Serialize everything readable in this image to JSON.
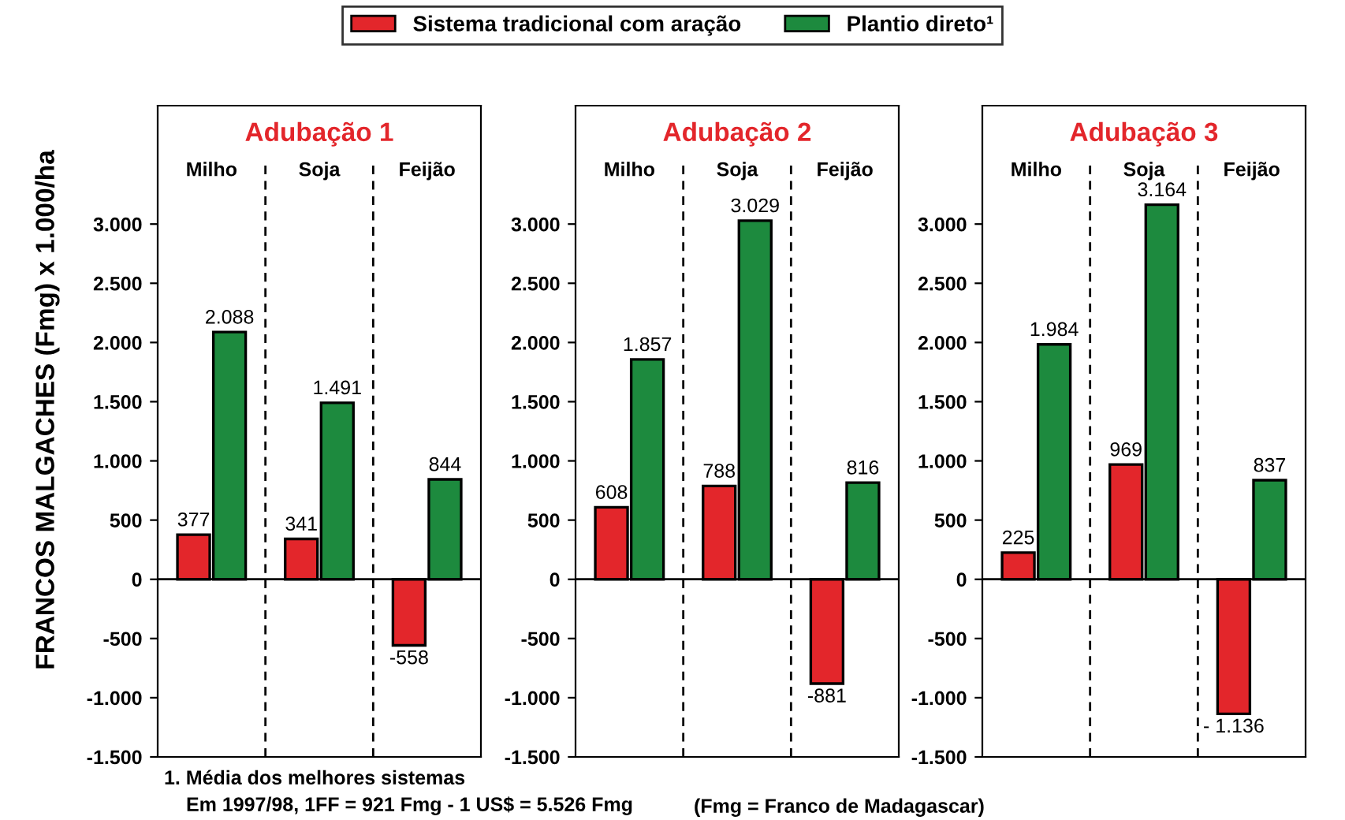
{
  "chart_data": [
    {
      "type": "bar",
      "title": "Adubação 1",
      "ylabel": "FRANCOS MALGACHES (Fmg) x 1.000/ha",
      "categories": [
        "Milho",
        "Soja",
        "Feijão"
      ],
      "legend": "top",
      "ylim": [
        -1500,
        4000
      ],
      "yticks": [
        {
          "value": -1500,
          "label": "-1.500"
        },
        {
          "value": -1000,
          "label": "-1.000"
        },
        -500,
        0,
        500,
        {
          "value": 1000,
          "label": "1.000"
        },
        {
          "value": 1500,
          "label": "1.500"
        },
        {
          "value": 2000,
          "label": "2.000"
        },
        {
          "value": 2500,
          "label": "2.500"
        },
        {
          "value": 3000,
          "label": "3.000"
        }
      ],
      "series": [
        {
          "name": "Sistema tradicional com aração",
          "color": "#e3262b",
          "values": [
            377,
            341,
            -558
          ],
          "value_labels": [
            "377",
            "341",
            "-558"
          ]
        },
        {
          "name": "Plantio direto¹",
          "color": "#1d8a3e",
          "values": [
            2088,
            1491,
            844
          ],
          "value_labels": [
            "2.088",
            "1.491",
            "844"
          ]
        }
      ],
      "annotations": [
        "1. Média dos melhores sistemas",
        "Em 1997/98, 1FF = 921 Fmg - 1 US$ = 5.526 Fmg",
        "(Fmg = Franco de Madagascar)"
      ]
    },
    {
      "type": "bar",
      "title": "Adubação 2",
      "categories": [
        "Milho",
        "Soja",
        "Feijão"
      ],
      "ylim": [
        -1500,
        4000
      ],
      "yticks": [
        {
          "value": -1500,
          "label": "-1.500"
        },
        {
          "value": -1000,
          "label": "-1.000"
        },
        -500,
        0,
        500,
        {
          "value": 1000,
          "label": "1.000"
        },
        {
          "value": 1500,
          "label": "1.500"
        },
        {
          "value": 2000,
          "label": "2.000"
        },
        {
          "value": 2500,
          "label": "2.500"
        },
        {
          "value": 3000,
          "label": "3.000"
        }
      ],
      "series": [
        {
          "color": "#e3262b",
          "values": [
            608,
            788,
            -881
          ],
          "value_labels": [
            "608",
            "788",
            "-881"
          ]
        },
        {
          "color": "#1d8a3e",
          "values": [
            1857,
            3029,
            816
          ],
          "value_labels": [
            "1.857",
            "3.029",
            "816"
          ]
        }
      ]
    },
    {
      "type": "bar",
      "title": "Adubação 3",
      "categories": [
        "Milho",
        "Soja",
        "Feijão"
      ],
      "ylim": [
        -1500,
        4000
      ],
      "yticks": [
        {
          "value": -1500,
          "label": "-1.500"
        },
        {
          "value": -1000,
          "label": "-1.000"
        },
        -500,
        0,
        500,
        {
          "value": 1000,
          "label": "1.000"
        },
        {
          "value": 1500,
          "label": "1.500"
        },
        {
          "value": 2000,
          "label": "2.000"
        },
        {
          "value": 2500,
          "label": "2.500"
        },
        {
          "value": 3000,
          "label": "3.000"
        }
      ],
      "series": [
        {
          "color": "#e3262b",
          "values": [
            225,
            969,
            -1136
          ],
          "value_labels": [
            "225",
            "969",
            "- 1.136"
          ]
        },
        {
          "color": "#1d8a3e",
          "values": [
            1984,
            3164,
            837
          ],
          "value_labels": [
            "1.984",
            "3.164",
            "837"
          ]
        }
      ]
    }
  ]
}
